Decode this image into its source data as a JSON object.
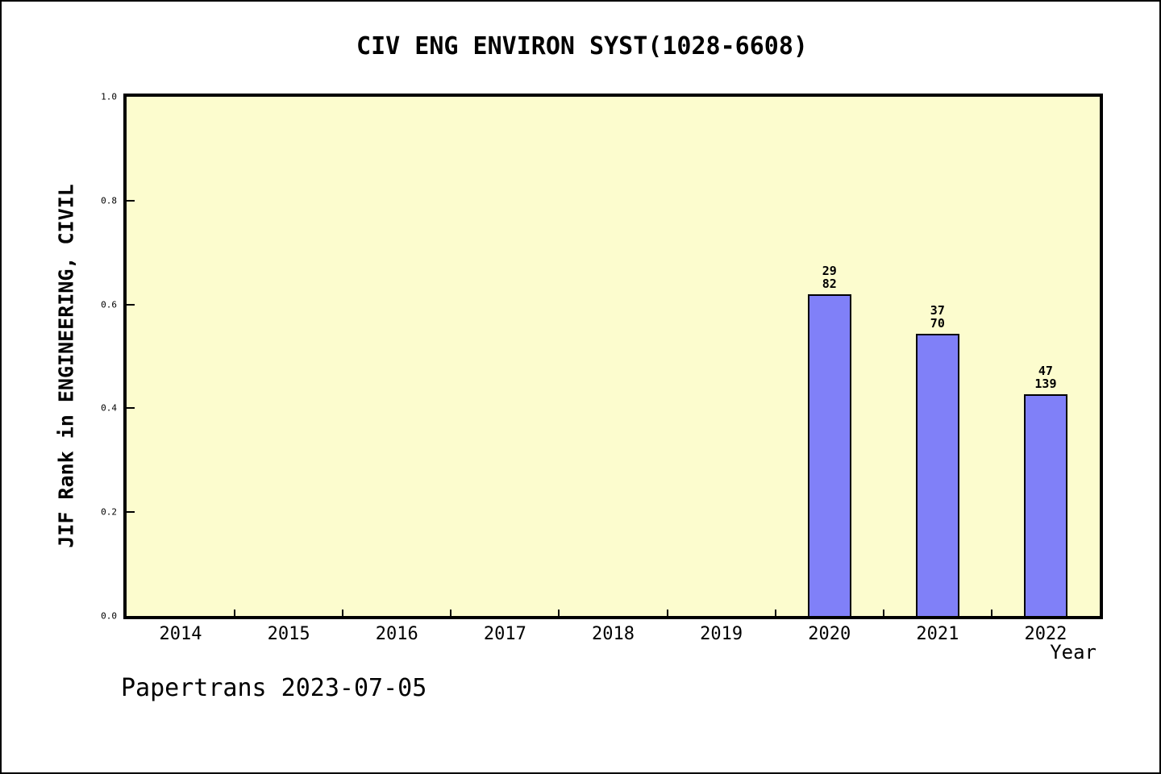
{
  "title": "CIV ENG ENVIRON SYST(1028-6608)",
  "footer": "Papertrans 2023-07-05",
  "chart_data": {
    "type": "bar",
    "title": "CIV ENG ENVIRON SYST(1028-6608)",
    "xlabel": "Year",
    "ylabel": "JIF Rank in ENGINEERING, CIVIL",
    "categories": [
      "2014",
      "2015",
      "2016",
      "2017",
      "2018",
      "2019",
      "2020",
      "2021",
      "2022"
    ],
    "values": [
      null,
      null,
      null,
      null,
      null,
      null,
      0.62,
      0.543,
      0.427
    ],
    "bar_labels": [
      null,
      null,
      null,
      null,
      null,
      null,
      [
        "29",
        "82"
      ],
      [
        "37",
        "70"
      ],
      [
        "47",
        "139"
      ]
    ],
    "ylim": [
      0.0,
      1.0
    ],
    "yticks": [
      0.0,
      0.2,
      0.4,
      0.6,
      0.8,
      1.0
    ],
    "grid": false,
    "legend": null,
    "annotation_meaning": "rank over total journals",
    "colors": {
      "bar_fill": "#8080F8",
      "bar_border": "#000000",
      "plot_bg": "#FCFCCE",
      "page_bg": "#FFFFFF",
      "axis": "#000000",
      "text": "#000000"
    }
  }
}
